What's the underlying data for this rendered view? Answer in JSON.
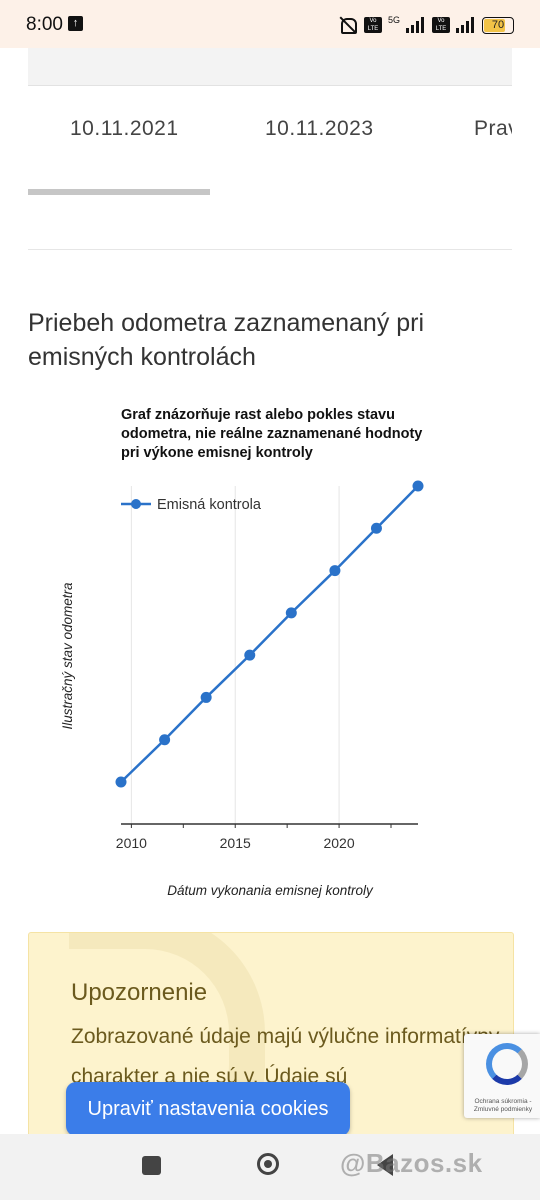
{
  "status_bar": {
    "time": "8:00",
    "network": "5G",
    "volte": "Vo LTE",
    "battery": "70"
  },
  "table": {
    "dates": [
      "10.11.2021",
      "10.11.2023",
      "Prav"
    ]
  },
  "section": {
    "title": "Priebeh odometra zaznamenaný pri emisných kontrolách"
  },
  "chart_data": {
    "type": "line",
    "title": "Graf znázorňuje rast alebo pokles stavu odometra, nie reálne zaznamenané hodnoty pri výkone emisnej kontroly",
    "xlabel": "Dátum vykonania emisnej kontroly",
    "ylabel": "Ilustračný stav odometra",
    "x_ticks": [
      2010,
      2015,
      2020
    ],
    "xlim": [
      2009.5,
      2023.8
    ],
    "ylim": [
      0,
      8
    ],
    "grid": true,
    "legend_position": "top-left",
    "series": [
      {
        "name": "Emisná kontrola",
        "color": "#2a72c9",
        "x": [
          2009.5,
          2011.6,
          2013.6,
          2015.7,
          2017.7,
          2019.8,
          2021.8,
          2023.8
        ],
        "y": [
          0,
          1,
          2,
          3,
          4,
          5,
          6,
          7
        ]
      }
    ]
  },
  "warning": {
    "title": "Upozornenie",
    "text": "Zobrazované údaje majú výlučne informatívny charakter a nie sú y. Údaje sú"
  },
  "recaptcha": {
    "text": "Ochrana súkromia - Zmluvné podmienky"
  },
  "cookie_button": {
    "label": "Upraviť nastavenia cookies"
  },
  "watermark": {
    "text": "@Bazos.sk"
  }
}
